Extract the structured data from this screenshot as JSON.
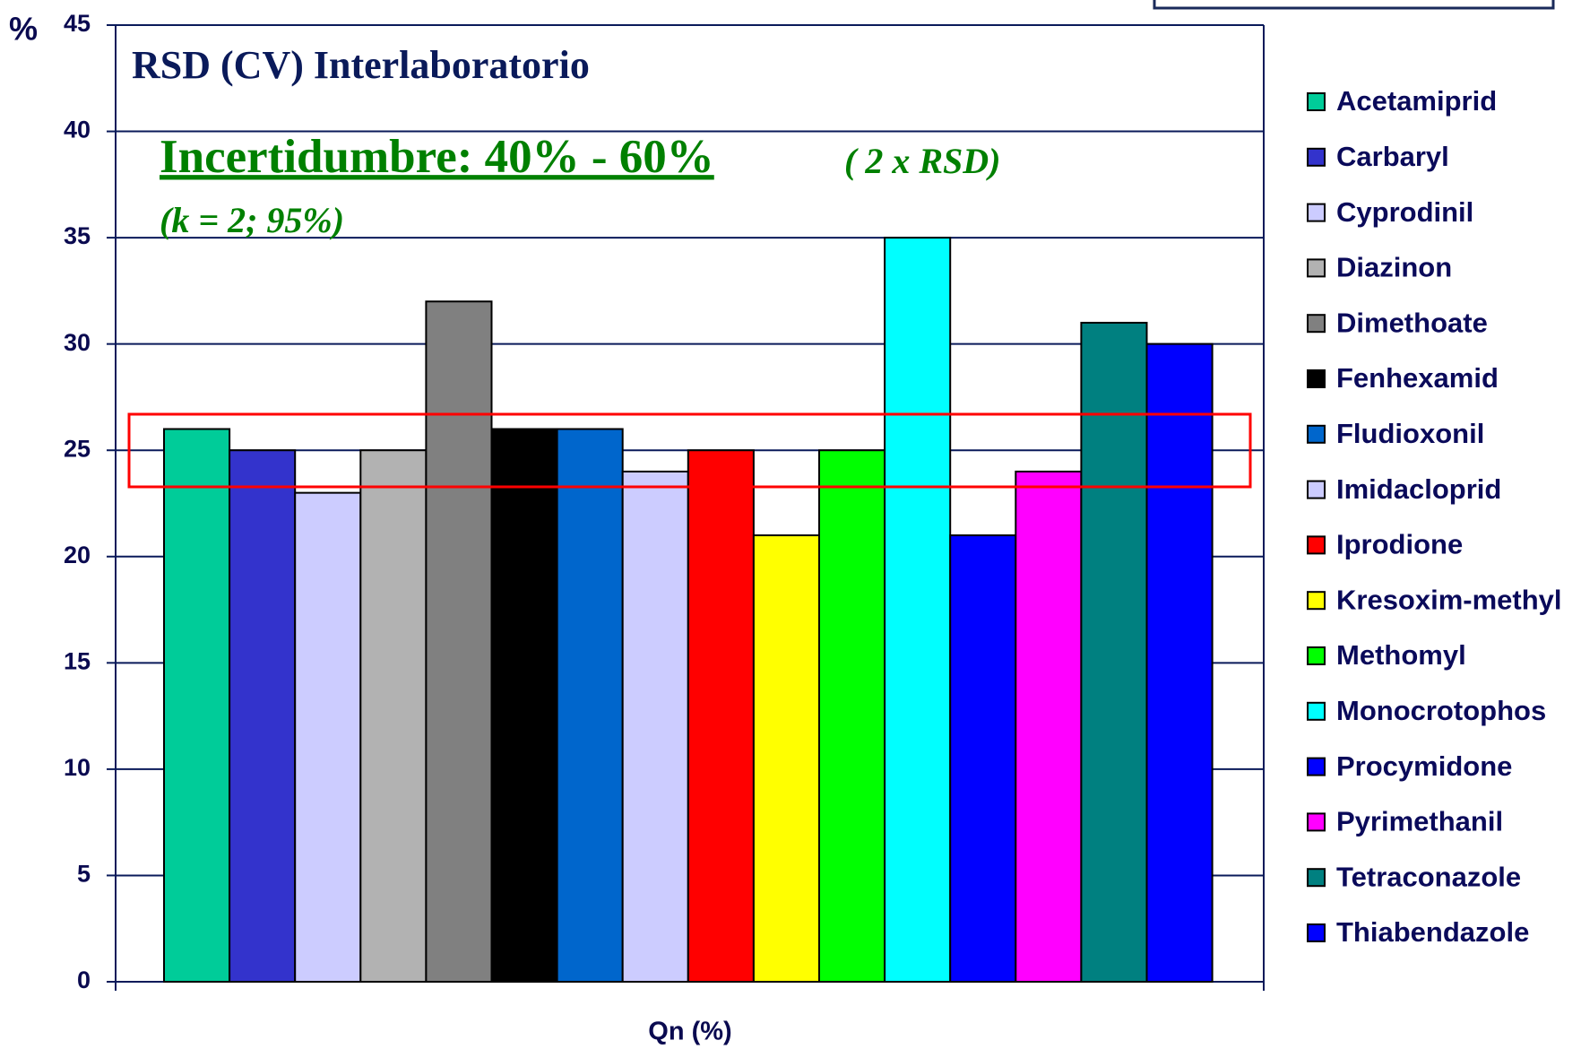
{
  "chart_data": {
    "type": "bar",
    "title": "RSD (CV) Interlaboratorio",
    "annotations": [
      "Incertidumbre: 40% - 60%",
      "( 2 x RSD)",
      "(k = 2; 95%)"
    ],
    "y_label": "%",
    "categories": [
      "Qn (%)"
    ],
    "series": [
      {
        "name": "Acetamiprid",
        "color": "#00cc99",
        "values": [
          26
        ]
      },
      {
        "name": "Carbaryl",
        "color": "#3333cc",
        "values": [
          25
        ]
      },
      {
        "name": "Cyprodinil",
        "color": "#ccccff",
        "values": [
          23
        ]
      },
      {
        "name": "Diazinon",
        "color": "#b2b2b2",
        "values": [
          25
        ]
      },
      {
        "name": "Dimethoate",
        "color": "#808080",
        "values": [
          32
        ]
      },
      {
        "name": "Fenhexamid",
        "color": "#000000",
        "values": [
          26
        ]
      },
      {
        "name": "Fludioxonil",
        "color": "#0066cc",
        "values": [
          26
        ]
      },
      {
        "name": "Imidacloprid",
        "color": "#ccccff",
        "values": [
          24
        ]
      },
      {
        "name": "Iprodione",
        "color": "#ff0000",
        "values": [
          25
        ]
      },
      {
        "name": "Kresoxim-methyl",
        "color": "#ffff00",
        "values": [
          21
        ]
      },
      {
        "name": "Methomyl",
        "color": "#00ff00",
        "values": [
          25
        ]
      },
      {
        "name": "Monocrotophos",
        "color": "#00ffff",
        "values": [
          35
        ]
      },
      {
        "name": "Procymidone",
        "color": "#0000ff",
        "values": [
          21
        ]
      },
      {
        "name": "Pyrimethanil",
        "color": "#ff00ff",
        "values": [
          24
        ]
      },
      {
        "name": "Tetraconazole",
        "color": "#008080",
        "values": [
          31
        ]
      },
      {
        "name": "Thiabendazole",
        "color": "#0000ff",
        "values": [
          30
        ]
      }
    ],
    "ylim": [
      0,
      45
    ],
    "yticks": [
      0,
      5,
      10,
      15,
      20,
      25,
      30,
      35,
      40,
      45
    ],
    "grid": true,
    "legend": "right"
  }
}
